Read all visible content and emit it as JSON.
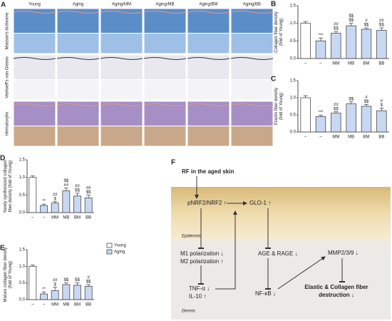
{
  "panel_a": {
    "label": "A",
    "columns": [
      "Young",
      "Aging",
      "Aging/MM",
      "Aging/MB",
      "Aging/BM",
      "Aging/BB"
    ],
    "rows": [
      "Masson's trichrome",
      "Verhoeff's van Gieson",
      "Hematoxylin"
    ]
  },
  "chart_data": [
    {
      "type": "bar",
      "panel": "B",
      "ylabel": [
        "Collagen fiber density",
        "(fold of Young)"
      ],
      "categories": [
        "–",
        "–",
        "MM",
        "MB",
        "BM",
        "BB"
      ],
      "values": [
        1.0,
        0.5,
        0.72,
        0.93,
        0.83,
        0.8
      ],
      "errors": [
        0.05,
        0.08,
        0.05,
        0.07,
        0.04,
        0.07
      ],
      "colors": [
        "#ffffff",
        "#c9d8f2",
        "#c9d8f2",
        "#c9d8f2",
        "#c9d8f2",
        "#c9d8f2"
      ],
      "annotations": [
        null,
        [
          "***"
        ],
        [
          "##",
          "$$"
        ],
        [
          "$$",
          "$$"
        ],
        [
          "#",
          "$$"
        ],
        [
          "##",
          "$$"
        ]
      ],
      "ylim": [
        0,
        1.5
      ],
      "yticks": [
        {
          "value": 0,
          "label": "0.0"
        },
        {
          "value": 0.5,
          "label": "0.5"
        },
        {
          "value": 1,
          "label": "1.0"
        },
        {
          "value": 1.5,
          "label": "1.5"
        }
      ]
    },
    {
      "type": "bar",
      "panel": "C",
      "ylabel": [
        "Elastin fiber density",
        "(fold of Young)"
      ],
      "categories": [
        "–",
        "–",
        "MM",
        "MB",
        "BM",
        "BB"
      ],
      "values": [
        1.0,
        0.45,
        0.55,
        0.82,
        0.75,
        0.62
      ],
      "errors": [
        0.06,
        0.04,
        0.04,
        0.06,
        0.05,
        0.08
      ],
      "colors": [
        "#ffffff",
        "#c9d8f2",
        "#c9d8f2",
        "#c9d8f2",
        "#c9d8f2",
        "#c9d8f2"
      ],
      "annotations": [
        null,
        [
          "***"
        ],
        [
          "##",
          "$$"
        ],
        [
          "$$"
        ],
        [
          "#",
          "$$"
        ],
        [
          "#",
          "$"
        ]
      ],
      "ylim": [
        0,
        1.5
      ],
      "yticks": [
        {
          "value": 0,
          "label": "0.0"
        },
        {
          "value": 0.5,
          "label": "0.5"
        },
        {
          "value": 1,
          "label": "1.0"
        },
        {
          "value": 1.5,
          "label": "1.5"
        }
      ]
    },
    {
      "type": "bar",
      "panel": "D",
      "ylabel": [
        "Newly synthesized collagen",
        "fiber density (fold of Young)"
      ],
      "categories": [
        "–",
        "–",
        "MM",
        "MB",
        "BM",
        "BB"
      ],
      "values": [
        1.0,
        0.2,
        0.27,
        0.62,
        0.47,
        0.42
      ],
      "errors": [
        0.04,
        0.04,
        0.04,
        0.08,
        0.08,
        0.08
      ],
      "colors": [
        "#ffffff",
        "#c9d8f2",
        "#c9d8f2",
        "#c9d8f2",
        "#c9d8f2",
        "#c9d8f2"
      ],
      "annotations": [
        null,
        [
          "**"
        ],
        [
          "##",
          "$"
        ],
        [
          "$$",
          "##"
        ],
        [
          "##",
          "$$"
        ],
        [
          "##",
          "$$"
        ]
      ],
      "ylim": [
        0,
        1.5
      ],
      "yticks": [
        {
          "value": 0,
          "label": "0.0"
        },
        {
          "value": 0.5,
          "label": "0.5"
        },
        {
          "value": 1,
          "label": "1.0"
        },
        {
          "value": 1.5,
          "label": "1.5"
        }
      ]
    },
    {
      "type": "bar",
      "panel": "E",
      "ylabel": [
        "Mature collagen fiber density",
        "(fold of Young)"
      ],
      "categories": [
        "–",
        "–",
        "MM",
        "MB",
        "BM",
        "BB"
      ],
      "values": [
        1.0,
        0.17,
        0.27,
        0.45,
        0.43,
        0.4
      ],
      "errors": [
        0.04,
        0.06,
        0.1,
        0.05,
        0.07,
        0.05
      ],
      "colors": [
        "#ffffff",
        "#c9d8f2",
        "#c9d8f2",
        "#c9d8f2",
        "#c9d8f2",
        "#c9d8f2"
      ],
      "annotations": [
        null,
        [
          "**"
        ],
        [
          "##",
          "$"
        ],
        [
          "$$"
        ],
        [
          "$$"
        ],
        [
          "#",
          "$$"
        ]
      ],
      "ylim": [
        0,
        1.5
      ],
      "yticks": [
        {
          "value": 0,
          "label": "0.0"
        },
        {
          "value": 0.5,
          "label": "0.5"
        },
        {
          "value": 1,
          "label": "1.0"
        },
        {
          "value": 1.5,
          "label": "1.5"
        }
      ],
      "legend": [
        {
          "name": "Young",
          "color": "#ffffff"
        },
        {
          "name": "Aging",
          "color": "#c9d8f2"
        }
      ]
    }
  ],
  "panel_f": {
    "label": "F",
    "title": "RF in the aged skin",
    "nrf2": "pNRF2/NRF2 ↑",
    "glo1": "GLO-1 ↑",
    "epidermis": "Epidermis",
    "dermis": "Dermis",
    "m1": "M1 polarization ↓",
    "m2": "M2 polarization ↑",
    "age": "AGE & RAGE ↓",
    "mmp": "MMP2/3/9 ↓",
    "tnf": "TNF-α ↓",
    "il10": "IL-10 ↑",
    "nfkb": "NF-κB ↓",
    "outcome": [
      "Elastic & Collagen fiber",
      "destruction ↓"
    ]
  }
}
